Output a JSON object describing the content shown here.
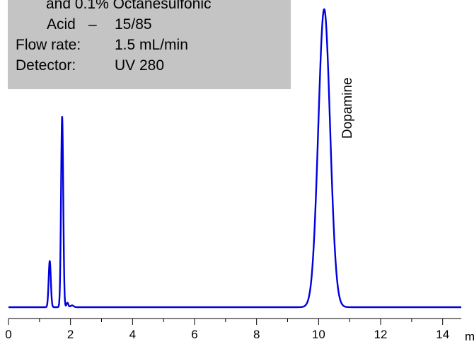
{
  "info": {
    "mobile_phase_line1": "and 0.1% Octanesulfonic",
    "mobile_phase_line2_label": "Acid",
    "mobile_phase_line2_dash": "–",
    "mobile_phase_line2_value": "15/85",
    "flow_rate_label": "Flow rate:",
    "flow_rate_value": "1.5 mL/min",
    "detector_label": "Detector:",
    "detector_value": "UV 280",
    "background_color": "#c4c4c4"
  },
  "chart_data": {
    "type": "line",
    "xlabel": "min",
    "ylabel": "",
    "xlim": [
      0,
      15
    ],
    "ylim": [
      0,
      1
    ],
    "x_ticks": [
      0,
      2,
      4,
      6,
      8,
      10,
      12,
      14
    ],
    "x_tick_labels": [
      "0",
      "2",
      "4",
      "6",
      "8",
      "10",
      "12",
      "14"
    ],
    "x_minor_ticks": [
      1,
      3,
      5,
      7,
      9,
      11,
      13,
      15
    ],
    "grid": false,
    "line_color": "#0000dd",
    "baseline": 0.0,
    "peaks": [
      {
        "label": "",
        "retention_time": 1.33,
        "height": 0.155,
        "width": 0.035
      },
      {
        "label": "",
        "retention_time": 1.73,
        "height": 0.64,
        "width": 0.035
      },
      {
        "label": "",
        "retention_time": 1.9,
        "height": 0.015,
        "width": 0.03
      },
      {
        "label": "",
        "retention_time": 2.05,
        "height": 0.006,
        "width": 0.05
      },
      {
        "label": "Dopamine",
        "retention_time": 10.18,
        "height": 1.0,
        "width": 0.19
      }
    ]
  }
}
